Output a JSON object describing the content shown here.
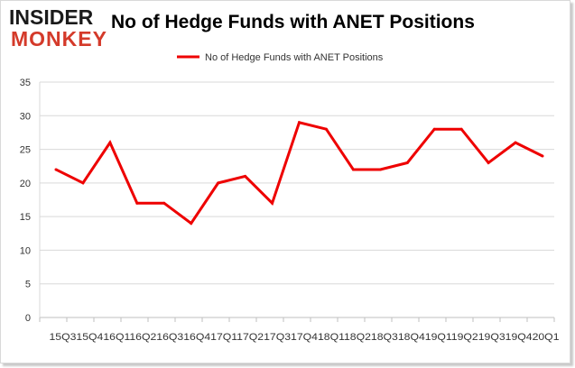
{
  "logo": {
    "line1": "INSIDER",
    "line2": "MONKEY"
  },
  "colors": {
    "series": "#ee0000",
    "grid": "#d9d9d9",
    "axis": "#bfbfbf"
  },
  "chart_data": {
    "type": "line",
    "title": "No of Hedge Funds with ANET Positions",
    "xlabel": "",
    "ylabel": "",
    "legend_position": "top-center",
    "grid": true,
    "ylim": [
      0,
      35
    ],
    "y_ticks": [
      0,
      5,
      10,
      15,
      20,
      25,
      30,
      35
    ],
    "x_tick_text": "15Q315Q416Q116Q216Q316Q417Q117Q217Q317Q418Q118Q218Q318Q419Q119Q219Q319Q420Q1",
    "categories": [
      "15Q3",
      "15Q4",
      "16Q1",
      "16Q2",
      "16Q3",
      "16Q4",
      "17Q1",
      "17Q2",
      "17Q3",
      "17Q4",
      "18Q1",
      "18Q2",
      "18Q3",
      "18Q4",
      "19Q1",
      "19Q2",
      "19Q3",
      "19Q4",
      "20Q1"
    ],
    "series": [
      {
        "name": "No of Hedge Funds with ANET Positions",
        "values": [
          22,
          20,
          26,
          17,
          17,
          14,
          20,
          21,
          17,
          29,
          28,
          22,
          22,
          23,
          28,
          28,
          23,
          26,
          24
        ]
      }
    ]
  }
}
